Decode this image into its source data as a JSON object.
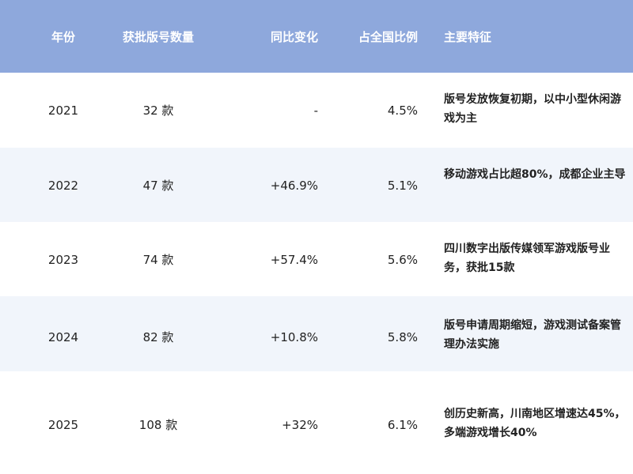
{
  "header": {
    "year": "年份",
    "count": "获批版号数量",
    "yoy": "同比变化",
    "share": "占全国比例",
    "features": "主要特征"
  },
  "colors": {
    "header_bg": "#8ea8dc",
    "alt_row_bg": "#f1f5fb"
  },
  "rows": [
    {
      "year": "2021",
      "count": "32 款",
      "yoy": "-",
      "share": "4.5%",
      "features": "版号发放恢复初期，以中小型休闲游戏为主"
    },
    {
      "year": "2022",
      "count": "47 款",
      "yoy": "+46.9%",
      "share": "5.1%",
      "features": "移动游戏占比超80%，成都企业主导"
    },
    {
      "year": "2023",
      "count": "74 款",
      "yoy": "+57.4%",
      "share": "5.6%",
      "features": "四川数字出版传媒领军游戏版号业务，获批15款"
    },
    {
      "year": "2024",
      "count": "82 款",
      "yoy": "+10.8%",
      "share": "5.8%",
      "features": "版号申请周期缩短，游戏测试备案管理办法实施"
    },
    {
      "year": "2025",
      "count": "108 款",
      "yoy": "+32%",
      "share": "6.1%",
      "features": "创历史新高，川南地区增速达45%，多端游戏增长40%"
    }
  ]
}
